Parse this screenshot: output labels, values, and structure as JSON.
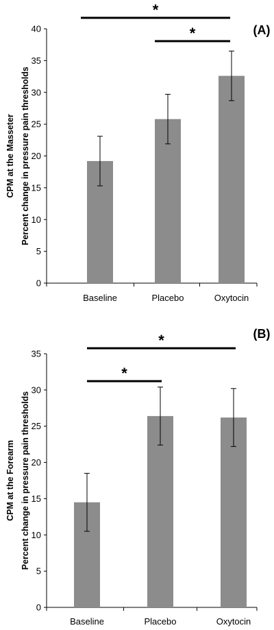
{
  "chart_data": [
    {
      "type": "bar",
      "panel_label": "(A)",
      "ylabel_lines": [
        "CPM at the Masseter",
        "Percent change  in pressure pain thresholds"
      ],
      "categories": [
        "Baseline",
        "Placebo",
        "Oxytocin"
      ],
      "values": [
        19.2,
        25.8,
        32.6
      ],
      "error": [
        3.9,
        3.9,
        3.9
      ],
      "ylim": [
        0,
        40
      ],
      "yticks": [
        0,
        5,
        10,
        15,
        20,
        25,
        30,
        35,
        40
      ],
      "color": "#8c8c8c",
      "significance": [
        {
          "from": 0,
          "to": 2,
          "level": 2,
          "label": "*"
        },
        {
          "from": 1,
          "to": 2,
          "level": 1,
          "label": "*"
        }
      ]
    },
    {
      "type": "bar",
      "panel_label": "(B)",
      "ylabel_lines": [
        "CPM at the Forearm",
        "Percent change in pressure pain thresholds"
      ],
      "categories": [
        "Baseline",
        "Placebo",
        "Oxytocin"
      ],
      "values": [
        14.5,
        26.4,
        26.2
      ],
      "error": [
        4.0,
        4.0,
        4.0
      ],
      "ylim": [
        0,
        35
      ],
      "yticks": [
        0,
        5,
        10,
        15,
        20,
        25,
        30,
        35
      ],
      "color": "#8c8c8c",
      "significance": [
        {
          "from": 0,
          "to": 2,
          "level": 2,
          "label": "*"
        },
        {
          "from": 0,
          "to": 1,
          "level": 1,
          "label": "*"
        }
      ]
    }
  ]
}
